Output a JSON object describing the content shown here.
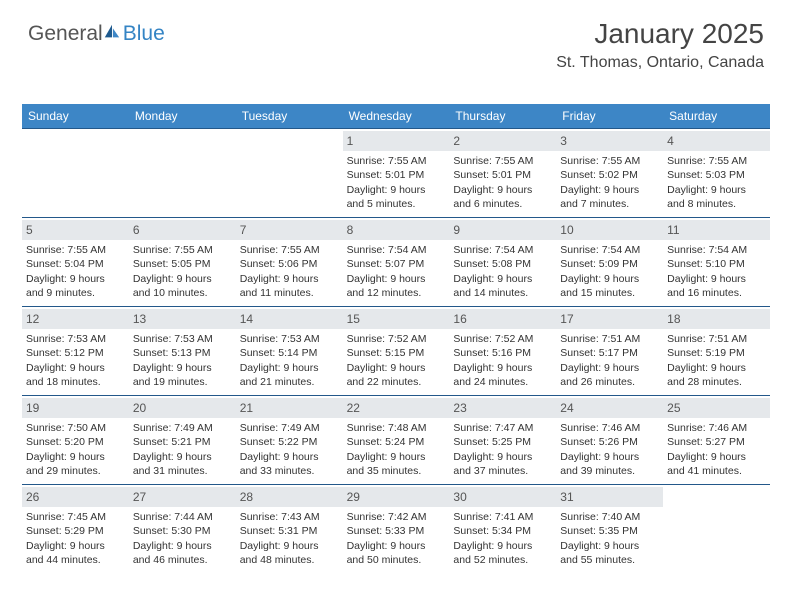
{
  "logo": {
    "part1": "General",
    "part2": "Blue"
  },
  "header": {
    "month": "January 2025",
    "location": "St. Thomas, Ontario, Canada"
  },
  "colors": {
    "header_bg": "#3d86c6",
    "header_text": "#ffffff",
    "daynum_bg": "#e5e8eb",
    "border": "#23588a",
    "logo_blue": "#3484c4"
  },
  "dayNames": [
    "Sunday",
    "Monday",
    "Tuesday",
    "Wednesday",
    "Thursday",
    "Friday",
    "Saturday"
  ],
  "weeks": [
    [
      {
        "blank": true
      },
      {
        "blank": true
      },
      {
        "blank": true
      },
      {
        "day": "1",
        "l1": "Sunrise: 7:55 AM",
        "l2": "Sunset: 5:01 PM",
        "l3": "Daylight: 9 hours",
        "l4": "and 5 minutes."
      },
      {
        "day": "2",
        "l1": "Sunrise: 7:55 AM",
        "l2": "Sunset: 5:01 PM",
        "l3": "Daylight: 9 hours",
        "l4": "and 6 minutes."
      },
      {
        "day": "3",
        "l1": "Sunrise: 7:55 AM",
        "l2": "Sunset: 5:02 PM",
        "l3": "Daylight: 9 hours",
        "l4": "and 7 minutes."
      },
      {
        "day": "4",
        "l1": "Sunrise: 7:55 AM",
        "l2": "Sunset: 5:03 PM",
        "l3": "Daylight: 9 hours",
        "l4": "and 8 minutes."
      }
    ],
    [
      {
        "day": "5",
        "l1": "Sunrise: 7:55 AM",
        "l2": "Sunset: 5:04 PM",
        "l3": "Daylight: 9 hours",
        "l4": "and 9 minutes."
      },
      {
        "day": "6",
        "l1": "Sunrise: 7:55 AM",
        "l2": "Sunset: 5:05 PM",
        "l3": "Daylight: 9 hours",
        "l4": "and 10 minutes."
      },
      {
        "day": "7",
        "l1": "Sunrise: 7:55 AM",
        "l2": "Sunset: 5:06 PM",
        "l3": "Daylight: 9 hours",
        "l4": "and 11 minutes."
      },
      {
        "day": "8",
        "l1": "Sunrise: 7:54 AM",
        "l2": "Sunset: 5:07 PM",
        "l3": "Daylight: 9 hours",
        "l4": "and 12 minutes."
      },
      {
        "day": "9",
        "l1": "Sunrise: 7:54 AM",
        "l2": "Sunset: 5:08 PM",
        "l3": "Daylight: 9 hours",
        "l4": "and 14 minutes."
      },
      {
        "day": "10",
        "l1": "Sunrise: 7:54 AM",
        "l2": "Sunset: 5:09 PM",
        "l3": "Daylight: 9 hours",
        "l4": "and 15 minutes."
      },
      {
        "day": "11",
        "l1": "Sunrise: 7:54 AM",
        "l2": "Sunset: 5:10 PM",
        "l3": "Daylight: 9 hours",
        "l4": "and 16 minutes."
      }
    ],
    [
      {
        "day": "12",
        "l1": "Sunrise: 7:53 AM",
        "l2": "Sunset: 5:12 PM",
        "l3": "Daylight: 9 hours",
        "l4": "and 18 minutes."
      },
      {
        "day": "13",
        "l1": "Sunrise: 7:53 AM",
        "l2": "Sunset: 5:13 PM",
        "l3": "Daylight: 9 hours",
        "l4": "and 19 minutes."
      },
      {
        "day": "14",
        "l1": "Sunrise: 7:53 AM",
        "l2": "Sunset: 5:14 PM",
        "l3": "Daylight: 9 hours",
        "l4": "and 21 minutes."
      },
      {
        "day": "15",
        "l1": "Sunrise: 7:52 AM",
        "l2": "Sunset: 5:15 PM",
        "l3": "Daylight: 9 hours",
        "l4": "and 22 minutes."
      },
      {
        "day": "16",
        "l1": "Sunrise: 7:52 AM",
        "l2": "Sunset: 5:16 PM",
        "l3": "Daylight: 9 hours",
        "l4": "and 24 minutes."
      },
      {
        "day": "17",
        "l1": "Sunrise: 7:51 AM",
        "l2": "Sunset: 5:17 PM",
        "l3": "Daylight: 9 hours",
        "l4": "and 26 minutes."
      },
      {
        "day": "18",
        "l1": "Sunrise: 7:51 AM",
        "l2": "Sunset: 5:19 PM",
        "l3": "Daylight: 9 hours",
        "l4": "and 28 minutes."
      }
    ],
    [
      {
        "day": "19",
        "l1": "Sunrise: 7:50 AM",
        "l2": "Sunset: 5:20 PM",
        "l3": "Daylight: 9 hours",
        "l4": "and 29 minutes."
      },
      {
        "day": "20",
        "l1": "Sunrise: 7:49 AM",
        "l2": "Sunset: 5:21 PM",
        "l3": "Daylight: 9 hours",
        "l4": "and 31 minutes."
      },
      {
        "day": "21",
        "l1": "Sunrise: 7:49 AM",
        "l2": "Sunset: 5:22 PM",
        "l3": "Daylight: 9 hours",
        "l4": "and 33 minutes."
      },
      {
        "day": "22",
        "l1": "Sunrise: 7:48 AM",
        "l2": "Sunset: 5:24 PM",
        "l3": "Daylight: 9 hours",
        "l4": "and 35 minutes."
      },
      {
        "day": "23",
        "l1": "Sunrise: 7:47 AM",
        "l2": "Sunset: 5:25 PM",
        "l3": "Daylight: 9 hours",
        "l4": "and 37 minutes."
      },
      {
        "day": "24",
        "l1": "Sunrise: 7:46 AM",
        "l2": "Sunset: 5:26 PM",
        "l3": "Daylight: 9 hours",
        "l4": "and 39 minutes."
      },
      {
        "day": "25",
        "l1": "Sunrise: 7:46 AM",
        "l2": "Sunset: 5:27 PM",
        "l3": "Daylight: 9 hours",
        "l4": "and 41 minutes."
      }
    ],
    [
      {
        "day": "26",
        "l1": "Sunrise: 7:45 AM",
        "l2": "Sunset: 5:29 PM",
        "l3": "Daylight: 9 hours",
        "l4": "and 44 minutes."
      },
      {
        "day": "27",
        "l1": "Sunrise: 7:44 AM",
        "l2": "Sunset: 5:30 PM",
        "l3": "Daylight: 9 hours",
        "l4": "and 46 minutes."
      },
      {
        "day": "28",
        "l1": "Sunrise: 7:43 AM",
        "l2": "Sunset: 5:31 PM",
        "l3": "Daylight: 9 hours",
        "l4": "and 48 minutes."
      },
      {
        "day": "29",
        "l1": "Sunrise: 7:42 AM",
        "l2": "Sunset: 5:33 PM",
        "l3": "Daylight: 9 hours",
        "l4": "and 50 minutes."
      },
      {
        "day": "30",
        "l1": "Sunrise: 7:41 AM",
        "l2": "Sunset: 5:34 PM",
        "l3": "Daylight: 9 hours",
        "l4": "and 52 minutes."
      },
      {
        "day": "31",
        "l1": "Sunrise: 7:40 AM",
        "l2": "Sunset: 5:35 PM",
        "l3": "Daylight: 9 hours",
        "l4": "and 55 minutes."
      },
      {
        "blank": true
      }
    ]
  ]
}
